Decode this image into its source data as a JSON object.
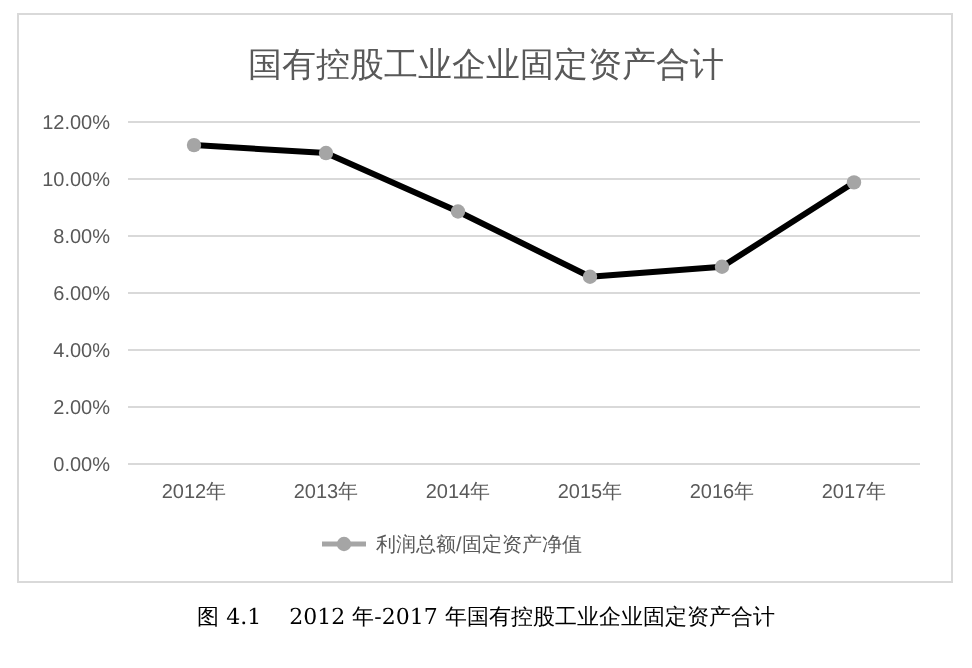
{
  "chart_data": {
    "type": "line",
    "title": "国有控股工业企业固定资产合计",
    "categories": [
      "2012年",
      "2013年",
      "2014年",
      "2015年",
      "2016年",
      "2017年"
    ],
    "series": [
      {
        "name": "利润总额/固定资产净值",
        "color": "#000000",
        "values": [
          11.19,
          10.91,
          8.86,
          6.57,
          6.92,
          9.88
        ]
      }
    ],
    "ylim": [
      0,
      12
    ],
    "yticks": [
      {
        "value": 0,
        "label": "0.00%"
      },
      {
        "value": 2,
        "label": "2.00%"
      },
      {
        "value": 4,
        "label": "4.00%"
      },
      {
        "value": 6,
        "label": "6.00%"
      },
      {
        "value": 8,
        "label": "8.00%"
      },
      {
        "value": 10,
        "label": "10.00%"
      },
      {
        "value": 12,
        "label": "12.00%"
      }
    ],
    "grid": "y",
    "legend": "bottom",
    "marker": "circle",
    "line_style": "solid",
    "annotations": [
      "图 4.1    2012 年-2017 年国有控股工业企业固定资产合计"
    ]
  }
}
